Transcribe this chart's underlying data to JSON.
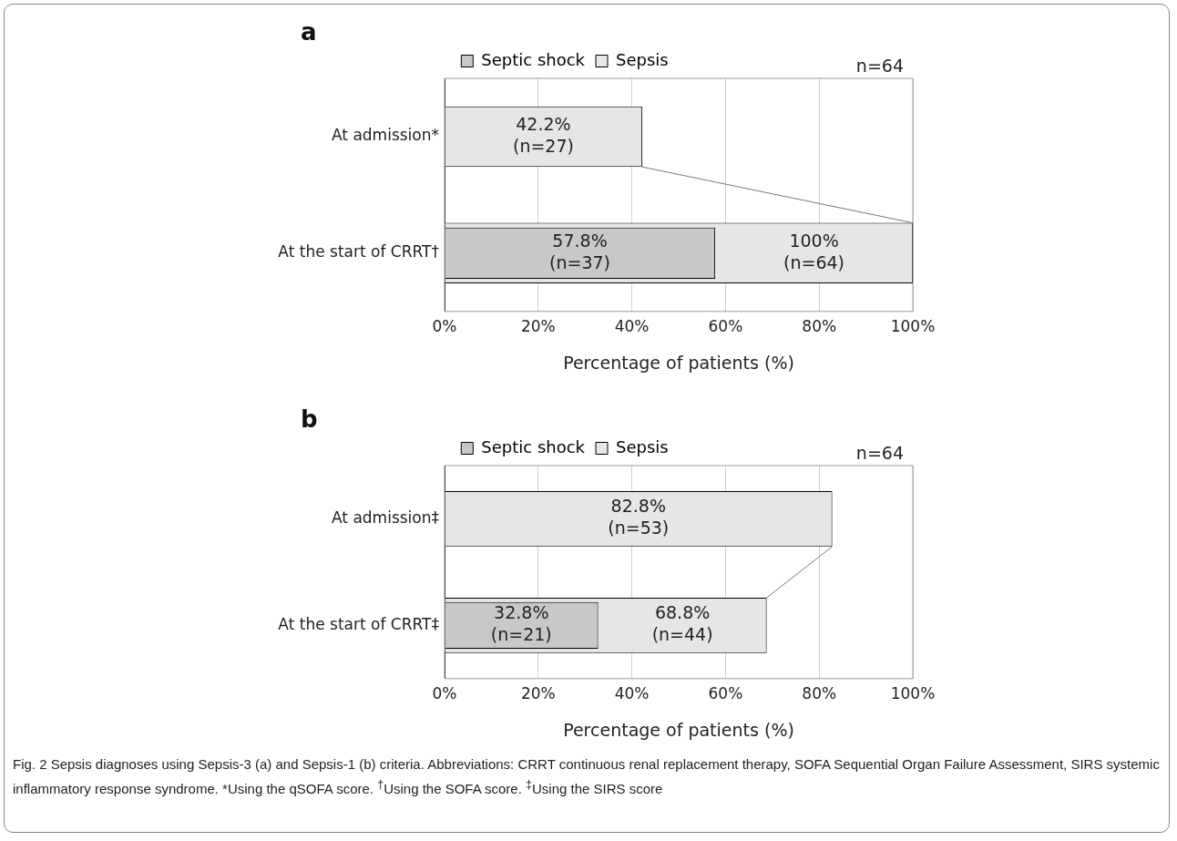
{
  "chart_data": [
    {
      "type": "bar",
      "orientation": "horizontal",
      "title": "a",
      "categories": [
        "At admission*",
        "At the start of CRRT†"
      ],
      "series": [
        {
          "name": "Septic shock",
          "color": "#c8c8c8",
          "values": [
            null,
            57.8
          ],
          "value_labels": [
            null,
            "57.8%\n(n=37)"
          ]
        },
        {
          "name": "Sepsis",
          "color": "#e6e6e6",
          "values": [
            42.2,
            100
          ],
          "value_labels": [
            "42.2%\n(n=27)",
            "100%\n(n=64)"
          ]
        }
      ],
      "xlim": [
        0,
        100
      ],
      "xticks": [
        {
          "value": 0,
          "label": "0%"
        },
        {
          "value": 20,
          "label": "20%"
        },
        {
          "value": 40,
          "label": "40%"
        },
        {
          "value": 60,
          "label": "60%"
        },
        {
          "value": 80,
          "label": "80%"
        },
        {
          "value": 100,
          "label": "100%"
        }
      ],
      "xlabel": "Percentage of patients (%)",
      "grid": "x",
      "legend": "top left",
      "annotations": [
        "n=64"
      ]
    },
    {
      "type": "bar",
      "orientation": "horizontal",
      "title": "b",
      "categories": [
        "At admission‡",
        "At the start of CRRT‡"
      ],
      "series": [
        {
          "name": "Septic shock",
          "color": "#c8c8c8",
          "values": [
            null,
            32.8
          ],
          "value_labels": [
            null,
            "32.8%\n(n=21)"
          ]
        },
        {
          "name": "Sepsis",
          "color": "#e6e6e6",
          "values": [
            82.8,
            68.8
          ],
          "value_labels": [
            "82.8%\n(n=53)",
            "68.8%\n(n=44)"
          ]
        }
      ],
      "xlim": [
        0,
        100
      ],
      "xticks": [
        {
          "value": 0,
          "label": "0%"
        },
        {
          "value": 20,
          "label": "20%"
        },
        {
          "value": 40,
          "label": "40%"
        },
        {
          "value": 60,
          "label": "60%"
        },
        {
          "value": 80,
          "label": "80%"
        },
        {
          "value": 100,
          "label": "100%"
        }
      ],
      "xlabel": "Percentage of patients (%)",
      "grid": "x",
      "legend": "top left",
      "annotations": [
        "n=64",
        "Fig. 2 Sepsis diagnoses using Sepsis-3 (a) and Sepsis-1 (b) criteria. Abbreviations: CRRT continuous renal replacement therapy, SOFA Sequential Organ Failure Assessment, SIRS systemic inflammatory response syndrome. *Using the qSOFA score. $^{†}$Using the SOFA score. $^{‡}$Using the SIRS score"
      ]
    }
  ]
}
